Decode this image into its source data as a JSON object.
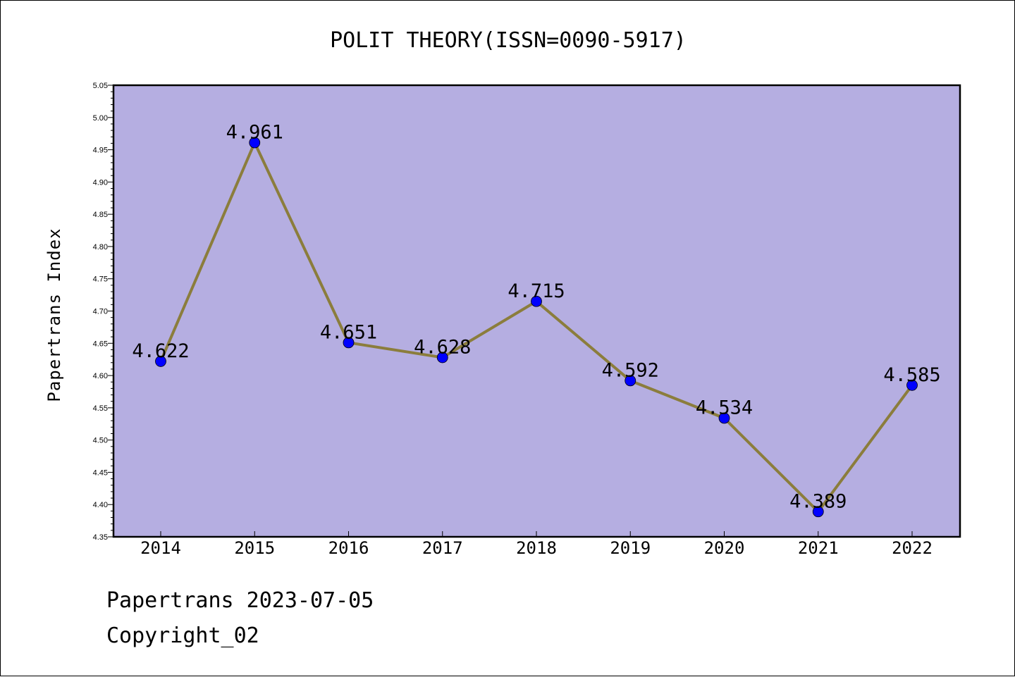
{
  "footer": {
    "line1": "Papertrans 2023-07-05",
    "line2": "Copyright_02"
  },
  "chart_data": {
    "type": "line",
    "title": "POLIT THEORY(ISSN=0090-5917)",
    "xlabel": "",
    "ylabel": "Papertrans Index",
    "categories": [
      "2014",
      "2015",
      "2016",
      "2017",
      "2018",
      "2019",
      "2020",
      "2021",
      "2022"
    ],
    "series": [
      {
        "values": [
          4.622,
          4.961,
          4.651,
          4.628,
          4.715,
          4.592,
          4.534,
          4.389,
          4.585
        ],
        "data_labels": [
          "4.622",
          "4.961",
          "4.651",
          "4.628",
          "4.715",
          "4.592",
          "4.534",
          "4.389",
          "4.585"
        ],
        "line_color": "#8b7d3c",
        "marker_color": "#0000ff"
      }
    ],
    "yticks": [
      "4.35",
      "4.40",
      "4.45",
      "4.50",
      "4.55",
      "4.60",
      "4.65",
      "4.70",
      "4.75",
      "4.80",
      "4.85",
      "4.90",
      "4.95",
      "5.00",
      "5.05"
    ],
    "ylim": [
      4.35,
      5.05
    ],
    "grid": false,
    "legend": "none",
    "plot_background": "#b5aee1"
  }
}
